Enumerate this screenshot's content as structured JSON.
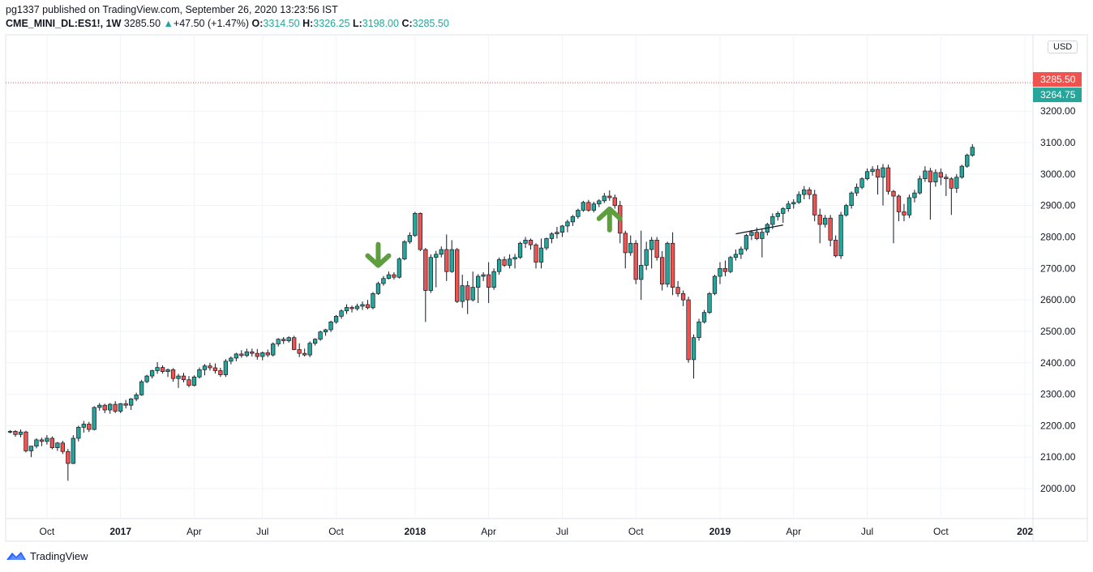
{
  "header": {
    "line1": "pg1337 published on TradingView.com, September 26, 2020 13:23:56 IST",
    "symbol": "CME_MINI_DL:ES1!, 1W",
    "last": "3285.50",
    "change": "+47.50 (+1.47%)",
    "o_label": "O:",
    "o": "3314.50",
    "h_label": "H:",
    "h": "3326.25",
    "l_label": "L:",
    "l": "3198.00",
    "c_label": "C:",
    "c": "3285.50"
  },
  "currency": "USD",
  "footer": {
    "brand": "TradingView"
  },
  "colors": {
    "up": "#26a69a",
    "down": "#ef5350",
    "arrow": "#5e9e3f",
    "grid": "#f0f3fa"
  },
  "chart_data": {
    "type": "candlestick",
    "interval": "1W",
    "ylim": [
      1900,
      3400
    ],
    "y_ticks": [
      2000,
      2100,
      2200,
      2300,
      2400,
      2500,
      2600,
      2700,
      2800,
      2900,
      3000,
      3100,
      3200
    ],
    "y_tick_labels": [
      "2000.00",
      "2100.00",
      "2200.00",
      "2300.00",
      "2400.00",
      "2500.00",
      "2600.00",
      "2700.00",
      "2800.00",
      "2900.00",
      "3000.00",
      "3100.00",
      "3200.00"
    ],
    "x_tick_labels": [
      "Oct",
      "2017",
      "Apr",
      "Jul",
      "Oct",
      "2018",
      "Apr",
      "Jul",
      "Oct",
      "2019",
      "Apr",
      "Jul",
      "Oct",
      "202"
    ],
    "x_tick_bold": [
      false,
      true,
      false,
      false,
      false,
      true,
      false,
      false,
      false,
      true,
      false,
      false,
      false,
      true
    ],
    "price_labels": [
      {
        "value": 3285.5,
        "text": "3285.50",
        "color": "#ef5350"
      },
      {
        "value": 3264.75,
        "text": "3264.75",
        "color": "#26a69a"
      }
    ],
    "annotations": [
      {
        "type": "arrow-down",
        "candle": 70
      },
      {
        "type": "arrow-up",
        "candle": 114
      }
    ],
    "trendline": {
      "from": [
        138,
        2810
      ],
      "to": [
        147,
        2838
      ]
    },
    "candles": [
      [
        2180,
        2186,
        2176,
        2182
      ],
      [
        2182,
        2186,
        2165,
        2172
      ],
      [
        2172,
        2188,
        2163,
        2180
      ],
      [
        2180,
        2184,
        2115,
        2120
      ],
      [
        2120,
        2130,
        2100,
        2135
      ],
      [
        2135,
        2160,
        2128,
        2155
      ],
      [
        2155,
        2162,
        2135,
        2150
      ],
      [
        2150,
        2170,
        2140,
        2160
      ],
      [
        2160,
        2166,
        2125,
        2130
      ],
      [
        2130,
        2148,
        2120,
        2145
      ],
      [
        2145,
        2152,
        2110,
        2118
      ],
      [
        2118,
        2126,
        2025,
        2080
      ],
      [
        2080,
        2170,
        2078,
        2160
      ],
      [
        2160,
        2200,
        2150,
        2195
      ],
      [
        2195,
        2215,
        2178,
        2205
      ],
      [
        2205,
        2212,
        2180,
        2188
      ],
      [
        2188,
        2262,
        2185,
        2258
      ],
      [
        2258,
        2272,
        2248,
        2265
      ],
      [
        2265,
        2270,
        2240,
        2250
      ],
      [
        2250,
        2272,
        2238,
        2268
      ],
      [
        2268,
        2278,
        2240,
        2246
      ],
      [
        2246,
        2272,
        2240,
        2270
      ],
      [
        2270,
        2282,
        2255,
        2265
      ],
      [
        2265,
        2288,
        2250,
        2285
      ],
      [
        2285,
        2305,
        2278,
        2298
      ],
      [
        2298,
        2345,
        2295,
        2340
      ],
      [
        2340,
        2362,
        2335,
        2358
      ],
      [
        2358,
        2378,
        2350,
        2375
      ],
      [
        2375,
        2402,
        2365,
        2385
      ],
      [
        2385,
        2392,
        2366,
        2372
      ],
      [
        2372,
        2382,
        2355,
        2378
      ],
      [
        2378,
        2383,
        2340,
        2350
      ],
      [
        2350,
        2365,
        2320,
        2358
      ],
      [
        2358,
        2368,
        2338,
        2346
      ],
      [
        2346,
        2358,
        2322,
        2328
      ],
      [
        2328,
        2360,
        2325,
        2355
      ],
      [
        2355,
        2385,
        2350,
        2378
      ],
      [
        2378,
        2396,
        2360,
        2390
      ],
      [
        2390,
        2400,
        2375,
        2384
      ],
      [
        2384,
        2398,
        2366,
        2375
      ],
      [
        2375,
        2384,
        2355,
        2362
      ],
      [
        2362,
        2412,
        2355,
        2405
      ],
      [
        2405,
        2420,
        2395,
        2415
      ],
      [
        2415,
        2432,
        2405,
        2428
      ],
      [
        2428,
        2440,
        2416,
        2423
      ],
      [
        2423,
        2445,
        2418,
        2435
      ],
      [
        2435,
        2445,
        2420,
        2430
      ],
      [
        2430,
        2444,
        2410,
        2420
      ],
      [
        2420,
        2436,
        2408,
        2432
      ],
      [
        2432,
        2442,
        2418,
        2425
      ],
      [
        2425,
        2465,
        2420,
        2460
      ],
      [
        2460,
        2478,
        2452,
        2475
      ],
      [
        2475,
        2482,
        2460,
        2470
      ],
      [
        2470,
        2484,
        2464,
        2480
      ],
      [
        2480,
        2486,
        2440,
        2442
      ],
      [
        2442,
        2462,
        2418,
        2430
      ],
      [
        2430,
        2445,
        2420,
        2425
      ],
      [
        2425,
        2468,
        2418,
        2462
      ],
      [
        2462,
        2478,
        2455,
        2475
      ],
      [
        2475,
        2502,
        2470,
        2498
      ],
      [
        2498,
        2508,
        2486,
        2505
      ],
      [
        2505,
        2534,
        2498,
        2530
      ],
      [
        2530,
        2552,
        2524,
        2548
      ],
      [
        2548,
        2570,
        2540,
        2565
      ],
      [
        2565,
        2586,
        2555,
        2576
      ],
      [
        2576,
        2582,
        2560,
        2572
      ],
      [
        2572,
        2588,
        2566,
        2580
      ],
      [
        2580,
        2595,
        2568,
        2585
      ],
      [
        2585,
        2600,
        2570,
        2575
      ],
      [
        2575,
        2625,
        2570,
        2620
      ],
      [
        2620,
        2658,
        2616,
        2652
      ],
      [
        2652,
        2676,
        2645,
        2668
      ],
      [
        2668,
        2690,
        2665,
        2680
      ],
      [
        2680,
        2688,
        2665,
        2672
      ],
      [
        2672,
        2735,
        2668,
        2730
      ],
      [
        2730,
        2790,
        2726,
        2785
      ],
      [
        2785,
        2815,
        2778,
        2805
      ],
      [
        2805,
        2880,
        2800,
        2875
      ],
      [
        2875,
        2878,
        2755,
        2760
      ],
      [
        2760,
        2765,
        2530,
        2630
      ],
      [
        2630,
        2745,
        2622,
        2735
      ],
      [
        2735,
        2756,
        2640,
        2745
      ],
      [
        2745,
        2770,
        2735,
        2760
      ],
      [
        2760,
        2808,
        2660,
        2690
      ],
      [
        2690,
        2790,
        2686,
        2760
      ],
      [
        2760,
        2765,
        2590,
        2595
      ],
      [
        2595,
        2680,
        2575,
        2645
      ],
      [
        2645,
        2660,
        2555,
        2600
      ],
      [
        2600,
        2690,
        2595,
        2640
      ],
      [
        2640,
        2682,
        2590,
        2675
      ],
      [
        2675,
        2688,
        2660,
        2680
      ],
      [
        2680,
        2720,
        2590,
        2640
      ],
      [
        2640,
        2700,
        2632,
        2690
      ],
      [
        2690,
        2735,
        2680,
        2728
      ],
      [
        2728,
        2738,
        2705,
        2710
      ],
      [
        2710,
        2745,
        2700,
        2730
      ],
      [
        2730,
        2746,
        2700,
        2735
      ],
      [
        2735,
        2785,
        2730,
        2780
      ],
      [
        2780,
        2800,
        2765,
        2790
      ],
      [
        2790,
        2795,
        2760,
        2775
      ],
      [
        2775,
        2780,
        2700,
        2720
      ],
      [
        2720,
        2795,
        2700,
        2765
      ],
      [
        2765,
        2798,
        2758,
        2795
      ],
      [
        2795,
        2815,
        2780,
        2810
      ],
      [
        2810,
        2832,
        2795,
        2815
      ],
      [
        2815,
        2838,
        2800,
        2835
      ],
      [
        2835,
        2855,
        2815,
        2848
      ],
      [
        2848,
        2870,
        2835,
        2865
      ],
      [
        2865,
        2890,
        2858,
        2885
      ],
      [
        2885,
        2915,
        2880,
        2910
      ],
      [
        2910,
        2918,
        2880,
        2885
      ],
      [
        2885,
        2912,
        2878,
        2905
      ],
      [
        2905,
        2920,
        2895,
        2915
      ],
      [
        2915,
        2940,
        2908,
        2930
      ],
      [
        2930,
        2948,
        2915,
        2925
      ],
      [
        2925,
        2935,
        2890,
        2900
      ],
      [
        2900,
        2915,
        2780,
        2812
      ],
      [
        2812,
        2820,
        2700,
        2750
      ],
      [
        2750,
        2805,
        2740,
        2780
      ],
      [
        2780,
        2790,
        2650,
        2665
      ],
      [
        2665,
        2820,
        2600,
        2710
      ],
      [
        2710,
        2785,
        2695,
        2760
      ],
      [
        2760,
        2800,
        2700,
        2790
      ],
      [
        2790,
        2800,
        2725,
        2735
      ],
      [
        2735,
        2755,
        2630,
        2650
      ],
      [
        2650,
        2785,
        2640,
        2780
      ],
      [
        2780,
        2815,
        2615,
        2640
      ],
      [
        2640,
        2660,
        2610,
        2620
      ],
      [
        2620,
        2630,
        2580,
        2600
      ],
      [
        2600,
        2610,
        2400,
        2410
      ],
      [
        2410,
        2490,
        2350,
        2480
      ],
      [
        2480,
        2540,
        2470,
        2530
      ],
      [
        2530,
        2568,
        2525,
        2560
      ],
      [
        2560,
        2625,
        2555,
        2620
      ],
      [
        2620,
        2680,
        2615,
        2675
      ],
      [
        2675,
        2720,
        2650,
        2700
      ],
      [
        2700,
        2725,
        2675,
        2690
      ],
      [
        2690,
        2740,
        2685,
        2735
      ],
      [
        2735,
        2760,
        2725,
        2745
      ],
      [
        2745,
        2770,
        2730,
        2762
      ],
      [
        2762,
        2810,
        2755,
        2805
      ],
      [
        2805,
        2822,
        2790,
        2815
      ],
      [
        2815,
        2830,
        2790,
        2795
      ],
      [
        2795,
        2825,
        2735,
        2815
      ],
      [
        2815,
        2845,
        2805,
        2840
      ],
      [
        2840,
        2875,
        2825,
        2865
      ],
      [
        2865,
        2882,
        2852,
        2875
      ],
      [
        2875,
        2895,
        2845,
        2890
      ],
      [
        2890,
        2915,
        2880,
        2905
      ],
      [
        2905,
        2920,
        2890,
        2910
      ],
      [
        2910,
        2945,
        2905,
        2935
      ],
      [
        2935,
        2962,
        2920,
        2950
      ],
      [
        2950,
        2958,
        2920,
        2935
      ],
      [
        2935,
        2950,
        2850,
        2870
      ],
      [
        2870,
        2890,
        2780,
        2840
      ],
      [
        2840,
        2870,
        2830,
        2860
      ],
      [
        2860,
        2870,
        2770,
        2790
      ],
      [
        2790,
        2805,
        2735,
        2740
      ],
      [
        2740,
        2880,
        2730,
        2870
      ],
      [
        2870,
        2905,
        2865,
        2900
      ],
      [
        2900,
        2945,
        2890,
        2940
      ],
      [
        2940,
        2970,
        2930,
        2958
      ],
      [
        2958,
        2990,
        2952,
        2985
      ],
      [
        2985,
        3018,
        2980,
        3008
      ],
      [
        3008,
        3025,
        2995,
        3015
      ],
      [
        3015,
        3028,
        2935,
        2990
      ],
      [
        2990,
        3032,
        2900,
        3020
      ],
      [
        3020,
        3030,
        2935,
        2945
      ],
      [
        2945,
        2950,
        2780,
        2930
      ],
      [
        2930,
        2935,
        2850,
        2880
      ],
      [
        2880,
        2905,
        2850,
        2870
      ],
      [
        2870,
        2935,
        2860,
        2925
      ],
      [
        2925,
        2950,
        2910,
        2940
      ],
      [
        2940,
        2995,
        2935,
        2985
      ],
      [
        2985,
        3025,
        2975,
        3010
      ],
      [
        3010,
        3020,
        2855,
        2975
      ],
      [
        2975,
        3015,
        2960,
        3005
      ],
      [
        3005,
        3018,
        2965,
        2990
      ],
      [
        2990,
        3000,
        2930,
        2985
      ],
      [
        2985,
        2990,
        2870,
        2955
      ],
      [
        2955,
        3000,
        2940,
        2990
      ],
      [
        2990,
        3030,
        2985,
        3025
      ],
      [
        3025,
        3065,
        3020,
        3060
      ],
      [
        3060,
        3095,
        3055,
        3085
      ]
    ]
  }
}
